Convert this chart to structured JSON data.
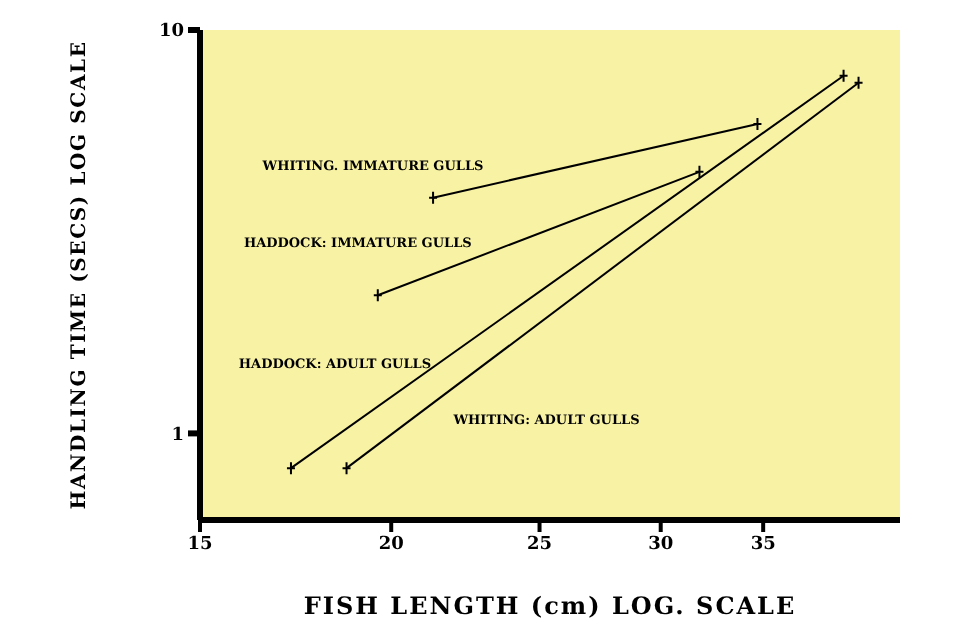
{
  "chart_data": {
    "type": "line",
    "xlabel": "FISH LENGTH (cm) LOG. SCALE",
    "ylabel": "HANDLING TIME (SECS) LOG SCALE",
    "log": "xy",
    "xlim": [
      15,
      43
    ],
    "xticks": [
      15,
      20,
      25,
      30,
      35
    ],
    "ylim": [
      0.61,
      10
    ],
    "yticks": [
      1,
      10
    ],
    "grid": false,
    "legend": false,
    "marker": "cross",
    "series": [
      {
        "name": "WHITING. IMMATURE GULLS",
        "color": "#000000",
        "x": [
          21.3,
          34.7
        ],
        "values": [
          3.84,
          5.85
        ]
      },
      {
        "name": "HADDOCK: IMMATURE GULLS",
        "color": "#000000",
        "x": [
          19.6,
          31.8
        ],
        "values": [
          2.2,
          4.45
        ]
      },
      {
        "name": "HADDOCK: ADULT GULLS",
        "color": "#000000",
        "x": [
          17.2,
          39.5
        ],
        "values": [
          0.82,
          7.7
        ]
      },
      {
        "name": "WHITING: ADULT GULLS",
        "color": "#000000",
        "x": [
          18.7,
          40.4
        ],
        "values": [
          0.82,
          7.4
        ]
      }
    ]
  }
}
